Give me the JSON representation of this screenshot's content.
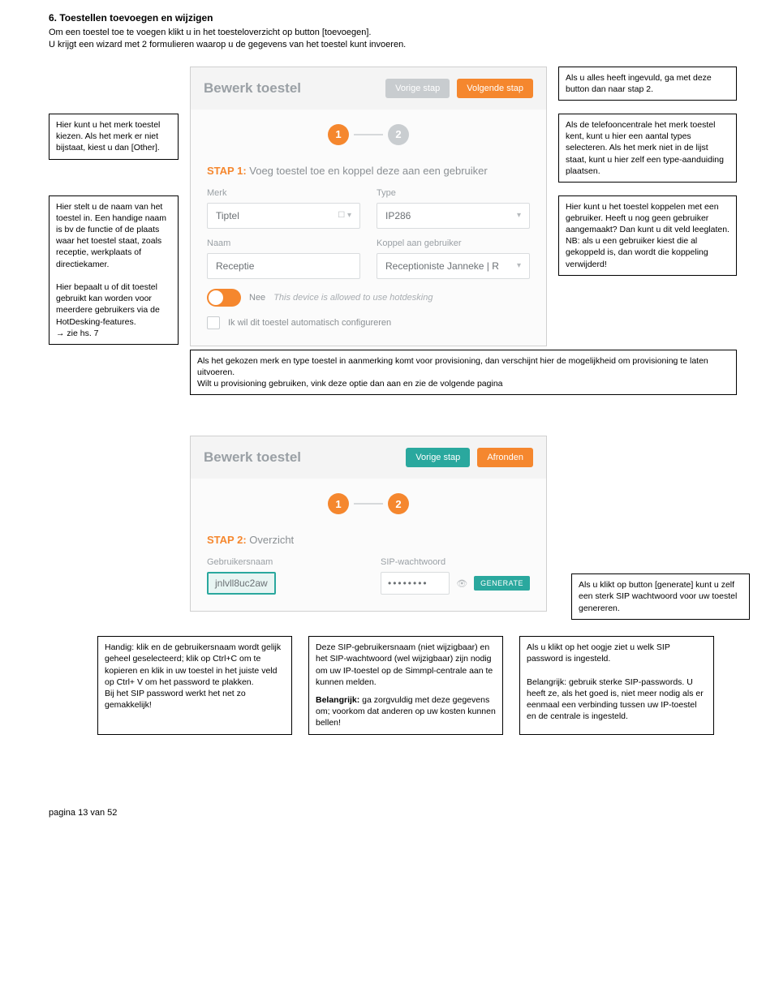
{
  "title": "6. Toestellen toevoegen en wijzigen",
  "intro": "Om een toestel toe te voegen klikt u in het toesteloverzicht op button [toevoegen].\nU krijgt een wizard met 2 formulieren waarop u de gegevens van het toestel kunt invoeren.",
  "callouts": {
    "done_button": "Als u alles heeft ingevuld, ga met deze button dan naar stap 2.",
    "merk_kiezen": "Hier kunt u het merk toestel kiezen. Als het merk er niet bijstaat, kiest u dan [Other].",
    "type_kiezen": "Als de telefooncentrale het merk toestel kent, kunt u hier een aantal types selecteren. Als het merk niet in de lijst staat, kunt u hier zelf een type-aanduiding plaatsen.",
    "naam_hotdesk": "Hier stelt u de naam van het toestel in. Een handige naam is bv de functie of de plaats waar het toestel staat, zoals receptie, werkplaats of directiekamer.\n\nHier bepaalt u of dit toestel gebruikt kan worden voor meerdere gebruikers via de HotDesking-features.\n→ zie hs. 7",
    "koppel": "Hier kunt u het toestel koppelen met een gebruiker. Heeft u nog geen gebruiker aangemaakt? Dan kunt u dit veld leeglaten.\nNB: als u een gebruiker kiest die al gekoppeld is, dan wordt die koppeling verwijderd!",
    "provisioning": "Als het gekozen merk en type toestel in aanmerking komt voor provisioning, dan verschijnt hier de mogelijkheid om provisioning te laten uitvoeren.\nWilt u provisioning gebruiken, vink deze optie dan aan en zie de volgende pagina",
    "generate": "Als u klikt op button [generate] kunt u zelf een sterk SIP wachtwoord voor uw toestel genereren.",
    "copy_tip_title": "",
    "copy_tip": "Handig: klik en de gebruikersnaam wordt gelijk geheel geselecteerd; klik op Ctrl+C om te kopieren en klik in uw toestel in het juiste veld op Ctrl+ V om het password te plakken.\nBij het SIP password werkt het net zo gemakkelijk!",
    "sip_user_pw": "Deze SIP-gebruikersnaam (niet wijzigbaar) en het SIP-wachtwoord (wel wijzigbaar) zijn nodig om uw IP-toestel op de Simmpl-centrale aan te kunnen melden.",
    "sip_user_pw_bold": "Belangrijk:",
    "sip_user_pw_2": " ga zorgvuldig met deze gegevens om; voorkom dat anderen op uw kosten kunnen bellen!",
    "eye_tip": "Als u klikt op het oogje ziet u welk SIP password is ingesteld.\n\nBelangrijk: gebruik sterke SIP-passwords. U heeft ze, als het goed is, niet meer nodig als er eenmaal een verbinding tussen uw IP-toestel en de centrale is ingesteld."
  },
  "panel1": {
    "title": "Bewerk toestel",
    "btn_prev": "Vorige stap",
    "btn_next": "Volgende stap",
    "step1_num": "1",
    "step2_num": "2",
    "step_label_bold": "STAP 1:",
    "step_label_rest": " Voeg toestel toe en koppel deze aan een gebruiker",
    "label_merk": "Merk",
    "label_type": "Type",
    "val_merk": "Tiptel",
    "merk_icon": "☐ ▾",
    "val_type": "IP286",
    "label_naam": "Naam",
    "label_koppel": "Koppel aan gebruiker",
    "val_naam": "Receptie",
    "val_koppel": "Receptioniste Janneke | R",
    "toggle_word": "Nee",
    "toggle_desc": "This device is allowed to use hotdesking",
    "check_desc": "Ik wil dit toestel automatisch configureren"
  },
  "panel2": {
    "title": "Bewerk toestel",
    "btn_prev": "Vorige stap",
    "btn_done": "Afronden",
    "step1_num": "1",
    "step2_num": "2",
    "step_label_bold": "STAP 2:",
    "step_label_rest": " Overzicht",
    "label_user": "Gebruikersnaam",
    "label_pw": "SIP-wachtwoord",
    "val_user": "jnlvll8uc2aw",
    "val_pw": "••••••••",
    "btn_generate": "GENERATE"
  },
  "footer": "pagina 13 van 52"
}
